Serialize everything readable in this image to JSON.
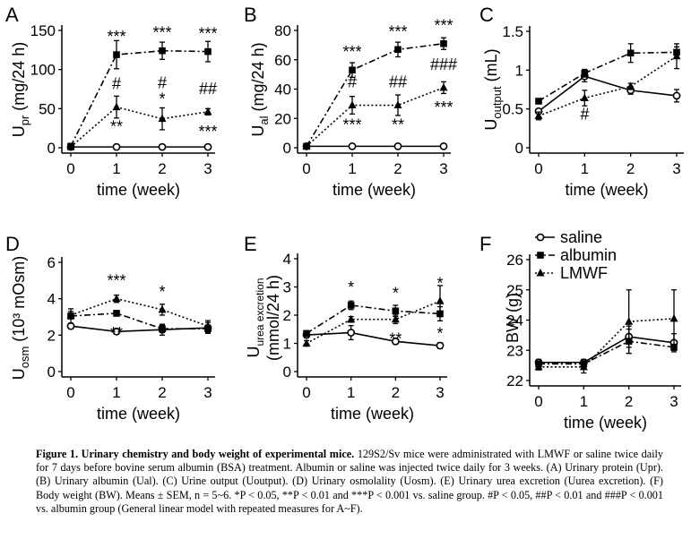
{
  "chart_data": [
    {
      "panel": "A",
      "type": "line",
      "ylabel": "U",
      "ylabel_sub": "pr",
      "ylabel_tail": " (mg/24 h)",
      "xlabel": "time (week)",
      "xticks": [
        0,
        1,
        2,
        3
      ],
      "ylim": [
        0,
        150
      ],
      "yticks": [
        0,
        50,
        100,
        150
      ],
      "series": [
        {
          "name": "saline",
          "values": [
            1,
            1,
            1,
            1
          ],
          "err": [
            0,
            0,
            0,
            0
          ]
        },
        {
          "name": "albumin",
          "values": [
            2,
            119,
            124,
            123
          ],
          "err": [
            0,
            18,
            11,
            13
          ]
        },
        {
          "name": "LMWF",
          "values": [
            1,
            52,
            37,
            46
          ],
          "err": [
            0,
            14,
            14,
            4
          ]
        }
      ],
      "annotations": [
        {
          "x": 1,
          "y": 119,
          "text": "***",
          "pos": "above"
        },
        {
          "x": 2,
          "y": 124,
          "text": "***",
          "pos": "above"
        },
        {
          "x": 3,
          "y": 123,
          "text": "***",
          "pos": "above"
        },
        {
          "x": 1,
          "y": 52,
          "text": "#",
          "pos": "above2"
        },
        {
          "x": 1,
          "y": 52,
          "text": "**",
          "pos": "below"
        },
        {
          "x": 2,
          "y": 37,
          "text": "#",
          "pos": "above3"
        },
        {
          "x": 2,
          "y": 37,
          "text": "*",
          "pos": "above2"
        },
        {
          "x": 3,
          "y": 46,
          "text": "##",
          "pos": "above2"
        },
        {
          "x": 3,
          "y": 46,
          "text": "***",
          "pos": "below"
        }
      ]
    },
    {
      "panel": "B",
      "type": "line",
      "ylabel": "U",
      "ylabel_sub": "al",
      "ylabel_tail": " (mg/24 h)",
      "xlabel": "time (week)",
      "xticks": [
        0,
        1,
        2,
        3
      ],
      "ylim": [
        0,
        80
      ],
      "yticks": [
        0,
        20,
        40,
        60,
        80
      ],
      "series": [
        {
          "name": "saline",
          "values": [
            1,
            1,
            1,
            1
          ],
          "err": [
            0,
            0,
            0,
            0
          ]
        },
        {
          "name": "albumin",
          "values": [
            1,
            53,
            67,
            71
          ],
          "err": [
            0,
            5,
            5,
            4
          ]
        },
        {
          "name": "LMWF",
          "values": [
            1,
            29,
            29,
            41
          ],
          "err": [
            0,
            6,
            7,
            4
          ]
        }
      ],
      "annotations": [
        {
          "x": 1,
          "y": 53,
          "text": "***",
          "pos": "above"
        },
        {
          "x": 2,
          "y": 67,
          "text": "***",
          "pos": "above"
        },
        {
          "x": 3,
          "y": 71,
          "text": "***",
          "pos": "above"
        },
        {
          "x": 1,
          "y": 29,
          "text": "#",
          "pos": "above2"
        },
        {
          "x": 1,
          "y": 29,
          "text": "***",
          "pos": "below"
        },
        {
          "x": 2,
          "y": 29,
          "text": "##",
          "pos": "above2"
        },
        {
          "x": 2,
          "y": 29,
          "text": "**",
          "pos": "below"
        },
        {
          "x": 3,
          "y": 41,
          "text": "###",
          "pos": "above2"
        },
        {
          "x": 3,
          "y": 41,
          "text": "***",
          "pos": "below"
        }
      ]
    },
    {
      "panel": "C",
      "type": "line",
      "ylabel": "U",
      "ylabel_sub": "output",
      "ylabel_tail": " (mL)",
      "xlabel": "time (week)",
      "xticks": [
        0,
        1,
        2,
        3
      ],
      "ylim": [
        0,
        1.5
      ],
      "yticks": [
        0,
        0.5,
        1,
        1.5
      ],
      "series": [
        {
          "name": "saline",
          "values": [
            0.47,
            0.92,
            0.74,
            0.67
          ],
          "err": [
            0.03,
            0.07,
            0.05,
            0.08
          ]
        },
        {
          "name": "albumin",
          "values": [
            0.6,
            0.96,
            1.22,
            1.23
          ],
          "err": [
            0.03,
            0.05,
            0.12,
            0.07
          ]
        },
        {
          "name": "LMWF",
          "values": [
            0.41,
            0.64,
            0.79,
            1.18
          ],
          "err": [
            0.05,
            0.1,
            0.04,
            0.16
          ]
        }
      ],
      "annotations": [
        {
          "x": 1,
          "y": 0.64,
          "text": "#",
          "pos": "below"
        }
      ]
    },
    {
      "panel": "D",
      "type": "line",
      "ylabel": "U",
      "ylabel_sub": "osm",
      "ylabel_tail": " (10³ mOsm)",
      "xlabel": "time (week)",
      "xticks": [
        0,
        1,
        2,
        3
      ],
      "ylim": [
        0,
        6
      ],
      "yticks": [
        0,
        2,
        4,
        6
      ],
      "series": [
        {
          "name": "saline",
          "values": [
            2.5,
            2.2,
            2.3,
            2.4
          ],
          "err": [
            0.15,
            0.15,
            0.3,
            0.3
          ]
        },
        {
          "name": "albumin",
          "values": [
            3.05,
            3.2,
            2.35,
            2.35
          ],
          "err": [
            0.4,
            0.15,
            0.2,
            0.2
          ]
        },
        {
          "name": "LMWF",
          "values": [
            3.1,
            4.0,
            3.4,
            2.5
          ],
          "err": [
            0.2,
            0.2,
            0.3,
            0.3
          ]
        }
      ],
      "annotations": [
        {
          "x": 1,
          "y": 4.0,
          "text": "***",
          "pos": "above"
        },
        {
          "x": 2,
          "y": 3.4,
          "text": "*",
          "pos": "above"
        },
        {
          "x": 1,
          "y": 3.2,
          "text": "**",
          "pos": "below"
        }
      ]
    },
    {
      "panel": "E",
      "type": "line",
      "ylabel": "U",
      "ylabel_sub": "urea excretion",
      "ylabel_line2": "(mmol/24 h)",
      "xlabel": "time (week)",
      "xticks": [
        0,
        1,
        2,
        3
      ],
      "ylim": [
        0,
        4
      ],
      "yticks": [
        0,
        1,
        2,
        3,
        4
      ],
      "series": [
        {
          "name": "saline",
          "values": [
            1.3,
            1.38,
            1.07,
            0.92
          ],
          "err": [
            0.1,
            0.25,
            0.1,
            0.1
          ]
        },
        {
          "name": "albumin",
          "values": [
            1.35,
            2.35,
            2.15,
            2.05
          ],
          "err": [
            0.1,
            0.15,
            0.2,
            0.25
          ]
        },
        {
          "name": "LMWF",
          "values": [
            1.0,
            1.85,
            1.85,
            2.5
          ],
          "err": [
            0.1,
            0.1,
            0.15,
            0.55
          ]
        }
      ],
      "annotations": [
        {
          "x": 1,
          "y": 2.35,
          "text": "*",
          "pos": "above"
        },
        {
          "x": 2,
          "y": 2.15,
          "text": "*",
          "pos": "above"
        },
        {
          "x": 3,
          "y": 2.5,
          "text": "*",
          "pos": "above"
        },
        {
          "x": 2,
          "y": 1.85,
          "text": "**",
          "pos": "below"
        },
        {
          "x": 3,
          "y": 2.05,
          "text": "*",
          "pos": "below"
        }
      ]
    },
    {
      "panel": "F",
      "type": "line",
      "ylabel": "BW (g)",
      "xlabel": "time (week)",
      "xticks": [
        0,
        1,
        2,
        3
      ],
      "ylim": [
        22,
        26
      ],
      "yticks": [
        22,
        23,
        24,
        25,
        26
      ],
      "series": [
        {
          "name": "saline",
          "values": [
            22.6,
            22.6,
            23.45,
            23.25
          ],
          "err": [
            0.1,
            0.1,
            0.35,
            0.3
          ]
        },
        {
          "name": "albumin",
          "values": [
            22.55,
            22.55,
            23.3,
            23.1
          ],
          "err": [
            0.1,
            0.1,
            0.4,
            0.1
          ]
        },
        {
          "name": "LMWF",
          "values": [
            22.45,
            22.45,
            23.95,
            24.05
          ],
          "err": [
            0.1,
            0.2,
            1.05,
            0.95
          ]
        }
      ],
      "annotations": []
    }
  ],
  "legend": {
    "items": [
      {
        "symbol": "saline",
        "label": "saline"
      },
      {
        "symbol": "albumin",
        "label": "albumin"
      },
      {
        "symbol": "LMWF",
        "label": "LMWF"
      }
    ]
  },
  "caption": {
    "title": "Figure 1.  Urinary chemistry and body weight of experimental mice.",
    "body": " 129S2/Sv mice were administrated with LMWF or saline twice daily for 7 days before bovine serum albumin (BSA) treatment. Albumin or saline was injected twice daily for 3 weeks. (A) Urinary protein (Upr). (B) Urinary albumin (Ual). (C) Urine output (Uoutput). (D) Urinary osmolality (Uosm). (E) Urinary urea excretion (Uurea excretion). (F) Body weight (BW). Means ± SEM, n = 5~6. *P < 0.05, **P < 0.01 and ***P < 0.001 vs. saline group. #P < 0.05, ##P < 0.01 and ###P < 0.001 vs. albumin group (General linear model with repeated measures for A~F)."
  }
}
